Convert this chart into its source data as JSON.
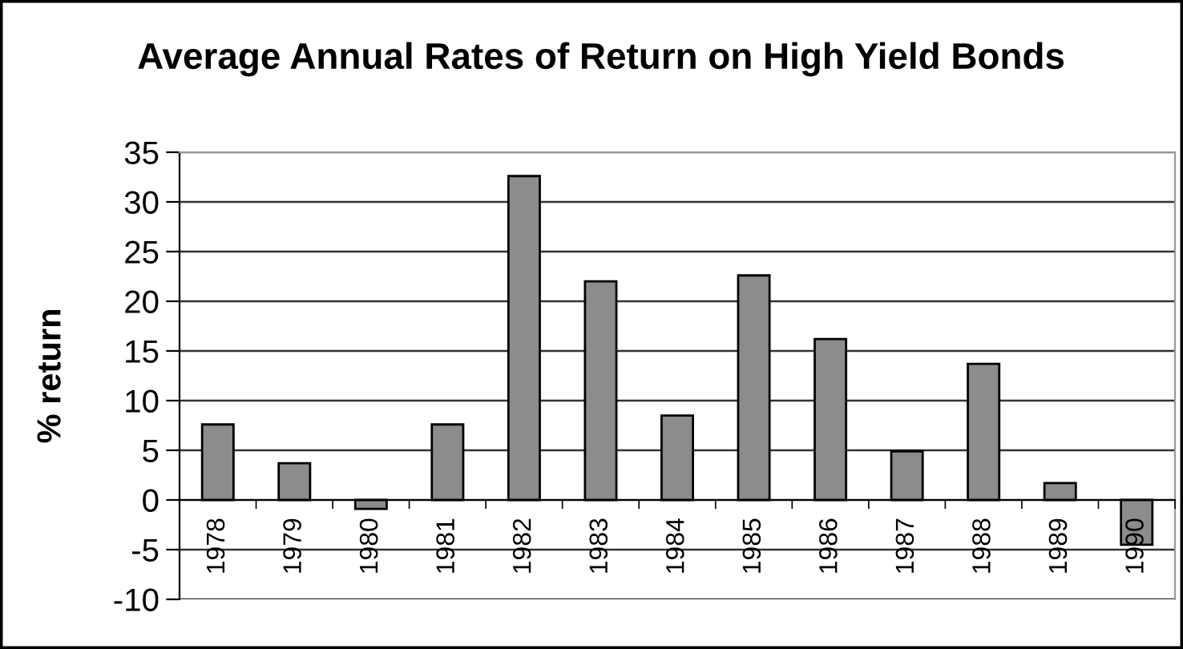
{
  "chart_data": {
    "type": "bar",
    "title": "Average Annual Rates of Return on High Yield Bonds",
    "ylabel": "% return",
    "categories": [
      "1978",
      "1979",
      "1980",
      "1981",
      "1982",
      "1983",
      "1984",
      "1985",
      "1986",
      "1987",
      "1988",
      "1989",
      "1990"
    ],
    "values": [
      7.6,
      3.7,
      -0.9,
      7.6,
      32.6,
      22.0,
      8.5,
      22.6,
      16.2,
      4.9,
      13.7,
      1.7,
      -4.5
    ],
    "color": "#8c8c8c",
    "ylim": [
      -10,
      35
    ],
    "yticks": [
      -10,
      -5,
      0,
      5,
      10,
      15,
      20,
      25,
      30,
      35
    ],
    "grid": "y"
  }
}
